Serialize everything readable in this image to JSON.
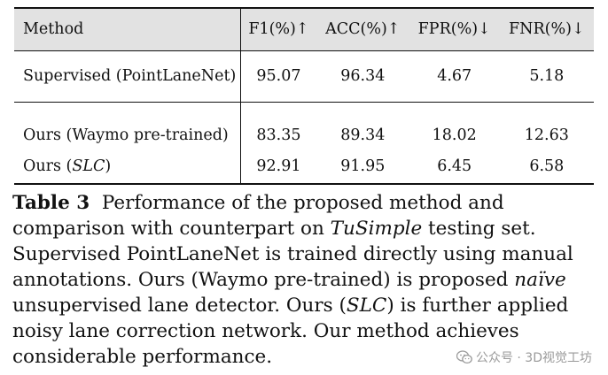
{
  "table": {
    "headers": [
      "Method",
      "F1(%)↑",
      "ACC(%)↑",
      "FPR(%)↓",
      "FNR(%)↓"
    ],
    "rows": [
      {
        "method": "Supervised (PointLaneNet)",
        "values": [
          "95.07",
          "96.34",
          "4.67",
          "5.18"
        ]
      },
      {
        "method_prefix": "Ours (Waymo pre-trained)",
        "values": [
          "83.35",
          "89.34",
          "18.02",
          "12.63"
        ]
      },
      {
        "method_prefix": "Ours (",
        "method_italic": "SLC",
        "method_suffix": ")",
        "values": [
          "92.91",
          "91.95",
          "6.45",
          "6.58"
        ]
      }
    ]
  },
  "caption": {
    "label": "Table 3",
    "lines": [
      {
        "a": "Performance of the proposed method and"
      },
      {
        "a": "comparison with counterpart on ",
        "i": "TuSimple",
        "b": " testing set."
      },
      {
        "a": "Supervised PointLaneNet is trained directly using manual"
      },
      {
        "a": "annotations. Ours (Waymo pre-trained) is proposed ",
        "i": "naïve"
      },
      {
        "a": "unsupervised lane detector. Ours (",
        "i": "SLC",
        "b": ") is further applied"
      },
      {
        "a": "noisy lane correction network. Our method achieves"
      },
      {
        "a": "considerable performance."
      }
    ]
  },
  "watermark": {
    "text": "公众号 · 3D视觉工坊",
    "icon": "wechat-icon",
    "color": "#9a9a9a"
  }
}
